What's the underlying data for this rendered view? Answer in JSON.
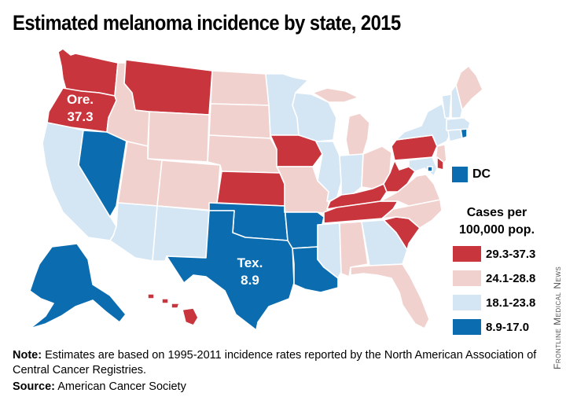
{
  "title": "Estimated melanoma incidence by state, 2015",
  "colors": {
    "tier1": "#c8353d",
    "tier2": "#f1d1cd",
    "tier3": "#d4e5f4",
    "tier4": "#0b6db0"
  },
  "legend": {
    "title_line1": "Cases per",
    "title_line2": "100,000 pop.",
    "items": [
      {
        "range": "29.3-37.3",
        "tier": "tier1"
      },
      {
        "range": "24.1-28.8",
        "tier": "tier2"
      },
      {
        "range": "18.1-23.8",
        "tier": "tier3"
      },
      {
        "range": "8.9-17.0",
        "tier": "tier4"
      }
    ],
    "dc_label": "DC",
    "dc_tier": "tier4"
  },
  "callouts": {
    "oregon": {
      "name": "Ore.",
      "value": "37.3"
    },
    "texas": {
      "name": "Tex.",
      "value": "8.9"
    }
  },
  "states": {
    "WA": "tier1",
    "OR": "tier1",
    "CA": "tier3",
    "NV": "tier4",
    "ID": "tier2",
    "MT": "tier1",
    "WY": "tier2",
    "UT": "tier2",
    "AZ": "tier3",
    "CO": "tier2",
    "NM": "tier3",
    "ND": "tier2",
    "SD": "tier2",
    "NE": "tier2",
    "KS": "tier1",
    "OK": "tier4",
    "TX": "tier4",
    "MN": "tier3",
    "IA": "tier1",
    "MO": "tier2",
    "AR": "tier4",
    "LA": "tier4",
    "WI": "tier3",
    "IL": "tier3",
    "MI": "tier2",
    "IN": "tier3",
    "OH": "tier2",
    "KY": "tier1",
    "TN": "tier1",
    "MS": "tier3",
    "AL": "tier2",
    "GA": "tier3",
    "FL": "tier2",
    "SC": "tier1",
    "NC": "tier2",
    "VA": "tier2",
    "WV": "tier1",
    "PA": "tier1",
    "NY": "tier3",
    "NJ": "tier2",
    "DE": "tier1",
    "MD": "tier3",
    "CT": "tier3",
    "RI": "tier4",
    "MA": "tier3",
    "VT": "tier3",
    "NH": "tier3",
    "ME": "tier2",
    "AK": "tier4",
    "HI": "tier1",
    "DC": "tier4"
  },
  "note_label": "Note:",
  "note_text": " Estimates are based on 1995-2011 incidence rates reported by the North American Association of Central Cancer Registries.",
  "source_label": "Source:",
  "source_text": " American Cancer Society",
  "credit": "Frontline Medical News"
}
